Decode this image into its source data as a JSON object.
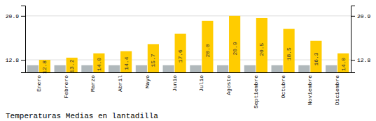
{
  "chart_data": {
    "type": "bar",
    "title": "Temperaturas Medias en lantadilla",
    "categories": [
      "Enero",
      "Febrero",
      "Marzo",
      "Abril",
      "Mayo",
      "Junio",
      "Julio",
      "Agosto",
      "Septiembre",
      "Octubre",
      "Noviembre",
      "Diciembre"
    ],
    "series": [
      {
        "color": "#B0B8BB",
        "values": [
          11.8,
          11.8,
          11.8,
          11.8,
          11.8,
          11.8,
          11.8,
          11.8,
          11.8,
          11.8,
          11.8,
          11.8
        ]
      },
      {
        "color": "#FFCC00",
        "values": [
          12.8,
          13.2,
          14.0,
          14.4,
          15.7,
          17.6,
          20.0,
          20.9,
          20.5,
          18.5,
          16.3,
          14.0
        ],
        "value_labels": [
          "12.8",
          "13.2",
          "14.0",
          "14.4",
          "15.7",
          "17.6",
          "20.0",
          "20.9",
          "20.5",
          "18.5",
          "16.3",
          "14.0"
        ],
        "data_labels": true
      }
    ],
    "ylim": [
      10.5,
      22.8
    ],
    "yticks": [
      12.8,
      20.9
    ],
    "y2lim": [
      10.5,
      22.8
    ],
    "y2ticks": [
      12.8,
      20.9
    ],
    "grid": true
  }
}
